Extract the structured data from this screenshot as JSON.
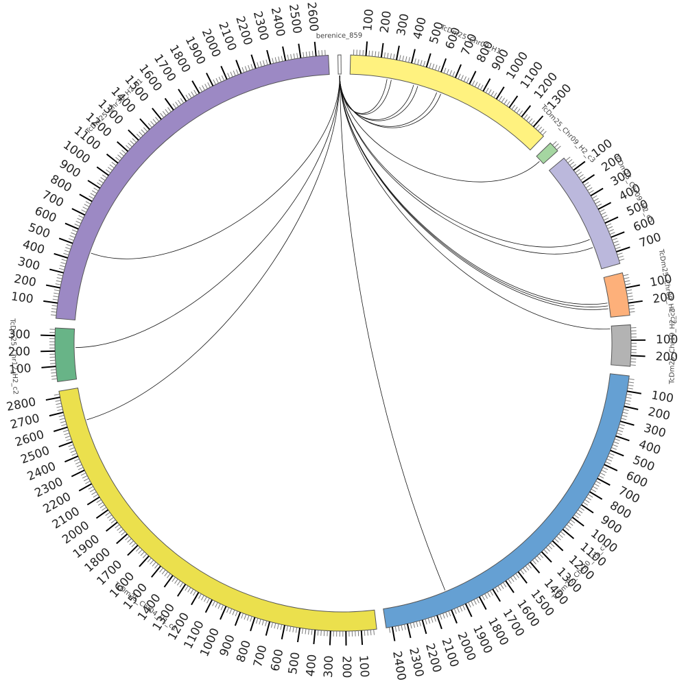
{
  "diagram": {
    "type": "circos",
    "tick_step": 100,
    "segments": [
      {
        "id": "berenice",
        "label": "berenice_859",
        "color": "#ffffff",
        "length": 20,
        "ticks": []
      },
      {
        "id": "chr09h1",
        "label": "TcDm25_Chr09_H1",
        "color": "#fff27f",
        "length": 1390,
        "ticks": [
          "100",
          "200",
          "300",
          "400",
          "500",
          "600",
          "700",
          "800",
          "900",
          "1000",
          "1100",
          "1200",
          "1300"
        ]
      },
      {
        "id": "chr09h2c3",
        "label": "TcDm25_Chr09_H2_c3",
        "color": "#a5d6a1",
        "length": 70,
        "ticks": []
      },
      {
        "id": "chr09h2c5",
        "label": "TcDm25_Chr09_H2_c5",
        "color": "#bbb8dc",
        "length": 780,
        "ticks": [
          "100",
          "200",
          "300",
          "400",
          "500",
          "600",
          "700"
        ]
      },
      {
        "id": "chr09h2c2",
        "label": "TcDm25_Chr09_H2_c2",
        "color": "#fdb07a",
        "length": 280,
        "ticks": [
          "100",
          "200"
        ]
      },
      {
        "id": "chr19h2c3",
        "label": "TcDm25_Chr19_H2_c3",
        "color": "#b3b3b3",
        "length": 270,
        "ticks": [
          "100",
          "200"
        ]
      },
      {
        "id": "chr30h1c1",
        "label": "TcDm25_Chr30_H1_c1",
        "color": "#65a0d3",
        "length": 2440,
        "ticks": [
          "100",
          "200",
          "300",
          "400",
          "500",
          "600",
          "700",
          "800",
          "900",
          "1000",
          "1100",
          "1200",
          "1300",
          "1400",
          "1500",
          "1600",
          "1700",
          "1800",
          "1900",
          "2000",
          "2100",
          "2200",
          "2300",
          "2400"
        ]
      },
      {
        "id": "chr04h1c1",
        "label": "TcDm25_Chr04_H1_c1",
        "color": "#ebe04d",
        "length": 2840,
        "ticks": [
          "100",
          "200",
          "300",
          "400",
          "500",
          "600",
          "700",
          "800",
          "900",
          "1000",
          "1100",
          "1200",
          "1300",
          "1400",
          "1500",
          "1600",
          "1700",
          "1800",
          "1900",
          "2000",
          "2100",
          "2200",
          "2300",
          "2400",
          "2500",
          "2600",
          "2700",
          "2800"
        ]
      },
      {
        "id": "chr12h2c2",
        "label": "TcDm25_Chr12_H2_c2",
        "color": "#68b487",
        "length": 350,
        "ticks": [
          "100",
          "200",
          "300"
        ]
      },
      {
        "id": "chr30h2c1",
        "label": "TcDm25_Chr30_H2_c1",
        "color": "#9c89c4",
        "length": 2680,
        "ticks": [
          "100",
          "200",
          "300",
          "400",
          "500",
          "600",
          "700",
          "800",
          "900",
          "1000",
          "1100",
          "1200",
          "1300",
          "1400",
          "1500",
          "1600",
          "1700",
          "1800",
          "1900",
          "2000",
          "2100",
          "2200",
          "2300",
          "2400",
          "2500",
          "2600"
        ]
      }
    ],
    "links": [
      {
        "from": "berenice",
        "to": "chr09h1",
        "pos": 260
      },
      {
        "from": "berenice",
        "to": "chr09h1",
        "pos": 290
      },
      {
        "from": "berenice",
        "to": "chr09h1",
        "pos": 450
      },
      {
        "from": "berenice",
        "to": "chr09h1",
        "pos": 480
      },
      {
        "from": "berenice",
        "to": "chr09h1",
        "pos": 620
      },
      {
        "from": "berenice",
        "to": "chr09h1",
        "pos": 650
      },
      {
        "from": "berenice",
        "to": "chr09h2c3",
        "pos": 40
      },
      {
        "from": "berenice",
        "to": "chr09h2c5",
        "pos": 560
      },
      {
        "from": "berenice",
        "to": "chr09h2c5",
        "pos": 620
      },
      {
        "from": "berenice",
        "to": "chr09h2c2",
        "pos": 180
      },
      {
        "from": "berenice",
        "to": "chr09h2c2",
        "pos": 200
      },
      {
        "from": "berenice",
        "to": "chr09h2c2",
        "pos": 220
      },
      {
        "from": "berenice",
        "to": "chr19h2c3",
        "pos": 20
      },
      {
        "from": "berenice",
        "to": "chr30h1c1",
        "pos": 1990
      },
      {
        "from": "berenice",
        "to": "chr04h1c1",
        "pos": 2610
      },
      {
        "from": "berenice",
        "to": "chr12h2c2",
        "pos": 220
      },
      {
        "from": "berenice",
        "to": "chr30h2c1",
        "pos": 480
      }
    ]
  }
}
